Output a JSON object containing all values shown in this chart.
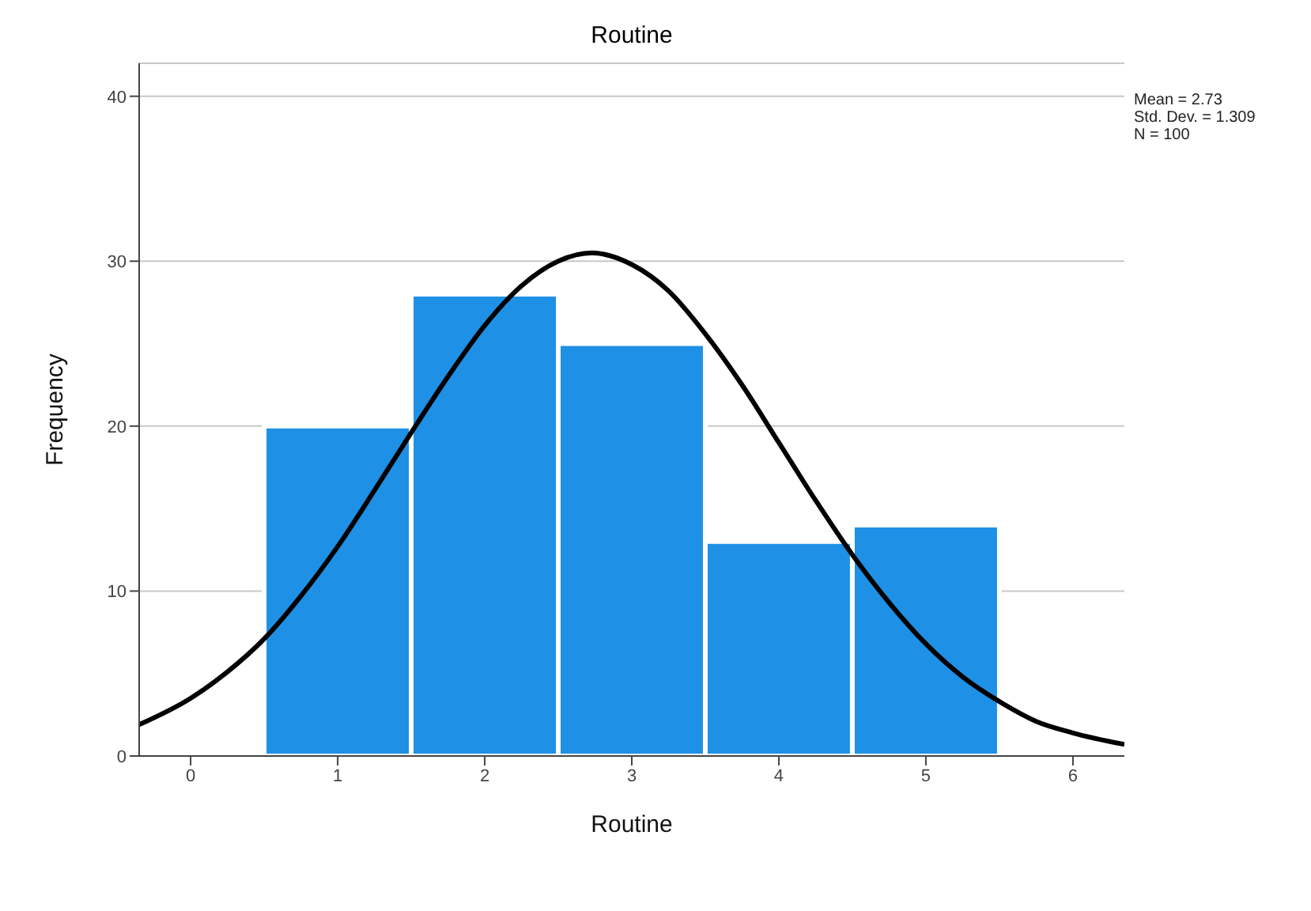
{
  "chart_data": {
    "type": "histogram",
    "title": "Routine",
    "xlabel": "Routine",
    "ylabel": "Frequency",
    "bins": [
      0.5,
      1.5,
      2.5,
      3.5,
      4.5,
      5.5
    ],
    "values": [
      20,
      28,
      25,
      13,
      14
    ],
    "color": "#1e90e6",
    "series": [
      {
        "type": "line",
        "color": "#000000",
        "x": [
          -0.35,
          0,
          0.25,
          0.5,
          0.75,
          1,
          1.25,
          1.5,
          1.75,
          2,
          2.25,
          2.5,
          2.73,
          3,
          3.25,
          3.5,
          3.75,
          4,
          4.25,
          4.5,
          4.75,
          5,
          5.25,
          5.5,
          5.75,
          6,
          6.35
        ],
        "values": [
          1.9,
          3.5,
          5.1,
          7.1,
          9.7,
          12.7,
          16.1,
          19.6,
          23,
          26.1,
          28.5,
          30,
          30.5,
          29.8,
          28.2,
          25.6,
          22.5,
          19,
          15.5,
          12.2,
          9.3,
          6.8,
          4.8,
          3.3,
          2.1,
          1.4,
          0.7
        ]
      }
    ],
    "xlim": [
      -0.35,
      6.35
    ],
    "xticks": [
      0,
      1,
      2,
      3,
      4,
      5,
      6
    ],
    "ylim": [
      0,
      42
    ],
    "yticks": [
      0,
      10,
      20,
      30,
      40
    ],
    "grid": "y",
    "marker": "none",
    "line_style": "solid",
    "annotations": [
      "Mean = 2.73",
      "Std. Dev. = 1.309",
      "N = 100"
    ]
  }
}
